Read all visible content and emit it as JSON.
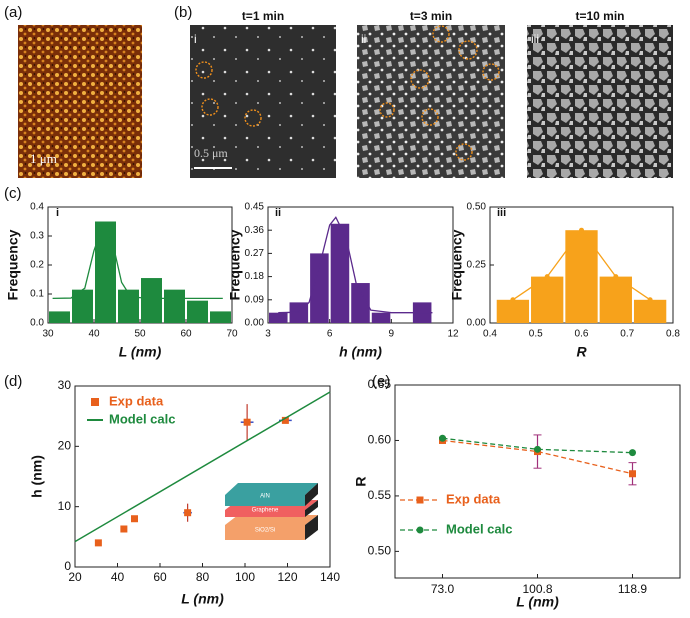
{
  "panel_labels": [
    "(a)",
    "(b)",
    "(c)",
    "(d)",
    "(e)"
  ],
  "images": {
    "afm_scale": "1 μm",
    "sem_scale": "0.5 μm",
    "sem": [
      {
        "label": "i",
        "title": "t=1 min"
      },
      {
        "label": "ii",
        "title": "t=3 min"
      },
      {
        "label": "iii",
        "title": "t=10 min"
      }
    ]
  },
  "inset": {
    "layers": [
      "AlN",
      "Graphene",
      "SiO2/Si"
    ]
  },
  "chart_data": [
    {
      "type": "histogram",
      "label": "i",
      "xlabel": "L (nm)",
      "ylabel": "Frequency",
      "color": "#1e8a3e",
      "fit_color": "#1e8a3e",
      "bins": [
        30,
        35,
        40,
        45,
        50,
        55,
        60,
        65,
        70
      ],
      "values": [
        0.04,
        0.115,
        0.35,
        0.115,
        0.155,
        0.115,
        0.077,
        0.04
      ],
      "fit": {
        "x": [
          31,
          35,
          38,
          40,
          42,
          44,
          46,
          48,
          52,
          60,
          68
        ],
        "y": [
          0.085,
          0.086,
          0.12,
          0.25,
          0.34,
          0.28,
          0.14,
          0.09,
          0.085,
          0.085,
          0.085
        ]
      },
      "xlim": [
        30,
        70
      ],
      "xticks": [
        30,
        40,
        50,
        60,
        70
      ],
      "ylim": [
        0,
        0.4
      ],
      "yticks": [
        {
          "value": 0,
          "label": "0.0"
        },
        0.1,
        0.2,
        0.3,
        0.4
      ]
    },
    {
      "type": "histogram",
      "label": "ii",
      "xlabel": "h (nm)",
      "ylabel": "Frequency",
      "color": "#5b2a8c",
      "fit_color": "#5b2a8c",
      "bins": [
        3,
        4,
        5,
        6,
        7,
        8,
        9,
        10,
        11
      ],
      "values": [
        0.04,
        0.08,
        0.27,
        0.385,
        0.155,
        0.04,
        0,
        0.08
      ],
      "fit": {
        "x": [
          3.5,
          4.5,
          5,
          5.5,
          6,
          6.3,
          6.8,
          7.3,
          8,
          9,
          11
        ],
        "y": [
          0.04,
          0.042,
          0.08,
          0.22,
          0.38,
          0.41,
          0.33,
          0.15,
          0.05,
          0.04,
          0.04
        ]
      },
      "xlim": [
        3,
        12
      ],
      "xticks": [
        3,
        6,
        9,
        12
      ],
      "ylim": [
        0,
        0.45
      ],
      "yticks": [
        {
          "value": 0,
          "label": "0.00"
        },
        0.09,
        0.18,
        0.27,
        0.36,
        0.45
      ]
    },
    {
      "type": "histogram",
      "label": "iii",
      "xlabel": "R",
      "ylabel": "Frequency",
      "color": "#f7a21b",
      "fit_color": "#f7a21b",
      "fit_markers": true,
      "bins": [
        0.4125,
        0.4875,
        0.5625,
        0.6375,
        0.7125,
        0.7875
      ],
      "values": [
        0.1,
        0.2,
        0.4,
        0.2,
        0.1
      ],
      "fit": {
        "x": [
          0.45,
          0.525,
          0.6,
          0.675,
          0.75
        ],
        "y": [
          0.1,
          0.2,
          0.4,
          0.2,
          0.1
        ]
      },
      "xlim": [
        0.4,
        0.8
      ],
      "xticks": [
        0.4,
        0.5,
        0.6,
        0.7,
        0.8
      ],
      "ylim": [
        0,
        0.5
      ],
      "yticks": [
        {
          "value": 0,
          "label": "0.00"
        },
        0.25,
        {
          "value": 0.5,
          "label": "0.50"
        }
      ]
    },
    {
      "type": "scatter",
      "xlabel": "L (nm)",
      "ylabel": "h (nm)",
      "legend": "upper left",
      "xlim": [
        20,
        140
      ],
      "xticks": [
        20,
        40,
        60,
        80,
        100,
        120,
        140
      ],
      "ylim": [
        0,
        30
      ],
      "yticks": [
        0,
        10,
        20,
        30
      ],
      "series": [
        {
          "name": "Exp data",
          "color": "#e8601c",
          "mode": "markers",
          "err_color": "#3a4fc4",
          "x": [
            31,
            43,
            48,
            73,
            101,
            119
          ],
          "values": [
            4,
            6.3,
            8,
            9,
            24,
            24.3
          ],
          "xerr": [
            null,
            null,
            null,
            2,
            3,
            3
          ],
          "yerr": [
            null,
            null,
            null,
            1.5,
            3,
            null
          ]
        },
        {
          "name": "Model calc",
          "color": "#1e8a3e",
          "mode": "line",
          "x": [
            20,
            140
          ],
          "values": [
            4.2,
            29
          ]
        }
      ]
    },
    {
      "type": "line",
      "xlabel": "L (nm)",
      "ylabel": "R",
      "legend": "lower left",
      "categories": [
        "73.0",
        "100.8",
        "118.9"
      ],
      "ylim": [
        0.476,
        0.65
      ],
      "yticks": [
        {
          "value": 0.5,
          "label": "0.50"
        },
        0.55,
        {
          "value": 0.6,
          "label": "0.60"
        },
        0.65
      ],
      "series": [
        {
          "name": "Exp data",
          "color": "#e8601c",
          "marker": "square",
          "values": [
            0.6,
            0.59,
            0.57
          ],
          "yerr": [
            null,
            0.015,
            0.01
          ],
          "err_color": "#a0307a"
        },
        {
          "name": "Model calc",
          "color": "#1e8a3e",
          "marker": "circle",
          "values": [
            0.602,
            0.592,
            0.589
          ]
        }
      ]
    }
  ]
}
